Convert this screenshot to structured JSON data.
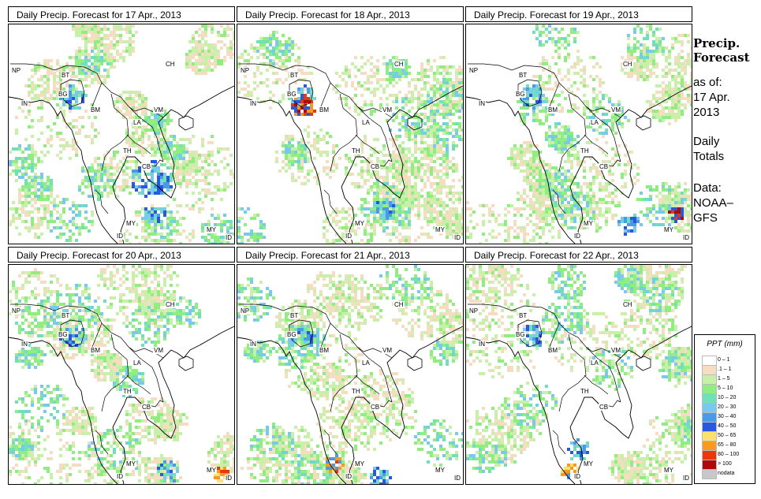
{
  "panels": [
    {
      "title": "Daily Precip. Forecast for  17 Apr., 2013",
      "seed": 17
    },
    {
      "title": "Daily Precip. Forecast for  18 Apr., 2013",
      "seed": 18
    },
    {
      "title": "Daily Precip. Forecast for  19 Apr., 2013",
      "seed": 19
    },
    {
      "title": "Daily Precip. Forecast for  20 Apr., 2013",
      "seed": 20
    },
    {
      "title": "Daily Precip. Forecast for  21 Apr., 2013",
      "seed": 21
    },
    {
      "title": "Daily Precip. Forecast for  22 Apr., 2013",
      "seed": 22
    }
  ],
  "country_labels": {
    "np": "NP",
    "bt": "BT",
    "in": "IN",
    "bg": "BG",
    "ch": "CH",
    "bm": "BM",
    "vm": "VM",
    "la": "LA",
    "th": "TH",
    "cb": "CB",
    "my1": "MY",
    "my2": "MY",
    "id1": "ID",
    "id2": "ID"
  },
  "sidebar": {
    "title_line1": "Precip.",
    "title_line2": "Forecast",
    "asof": "as of:",
    "date_line1": "17 Apr.",
    "date_line2": "2013",
    "totals_line1": "Daily",
    "totals_line2": "Totals",
    "data_line1": "Data:",
    "data_line2": "NOAA–",
    "data_line3": "GFS"
  },
  "legend": {
    "title": "PPT (mm)",
    "bins": [
      {
        "label": "0 – 1",
        "color": "#ffffff"
      },
      {
        "label": ".1 – 1",
        "color": "#f5ddc2"
      },
      {
        "label": "1 – 5",
        "color": "#c8f0a8"
      },
      {
        "label": "5 – 10",
        "color": "#90ee80"
      },
      {
        "label": "10 – 20",
        "color": "#6fe0b8"
      },
      {
        "label": "20 – 30",
        "color": "#78c8f0"
      },
      {
        "label": "30 – 40",
        "color": "#4a9ae8"
      },
      {
        "label": "40 – 50",
        "color": "#2858e0"
      },
      {
        "label": "50 – 65",
        "color": "#fce070"
      },
      {
        "label": "65 – 80",
        "color": "#f89a20"
      },
      {
        "label": "80 – 100",
        "color": "#e8380c"
      },
      {
        "label": "> 100",
        "color": "#b00808"
      },
      {
        "label": "nodata",
        "color": "#c8c8c8"
      }
    ]
  }
}
